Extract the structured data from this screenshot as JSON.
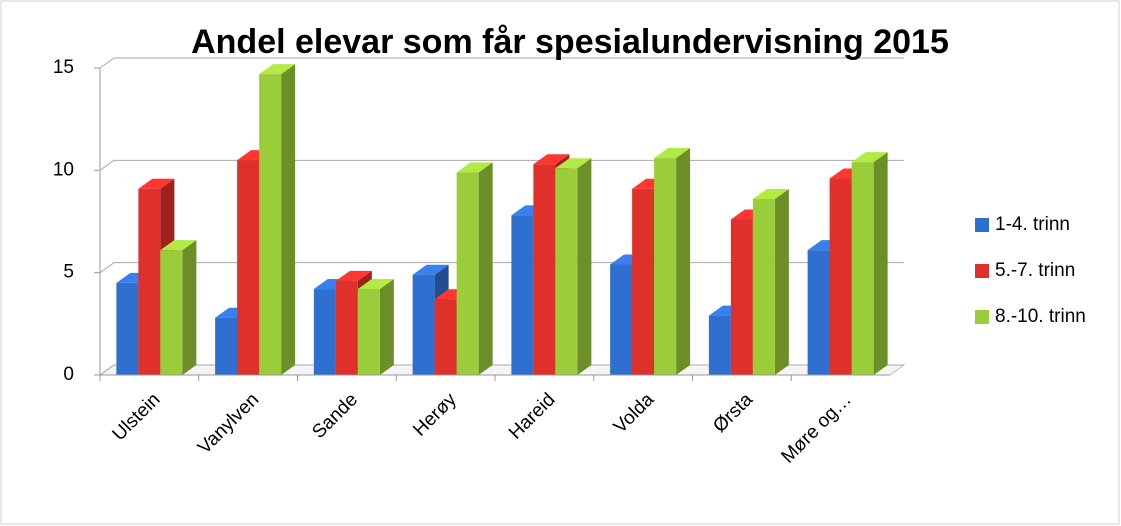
{
  "chart_data": {
    "type": "bar3d",
    "title": "Andel elevar som får spesialundervisning 2015",
    "categories": [
      "Ulstein",
      "Vanylven",
      "Sande",
      "Herøy",
      "Hareid",
      "Volda",
      "Ørsta",
      "Møre og…"
    ],
    "series": [
      {
        "name": "1-4. trinn",
        "color": "#2f6fd0",
        "values": [
          4.5,
          2.8,
          4.2,
          4.9,
          7.8,
          5.4,
          2.9,
          6.1
        ]
      },
      {
        "name": "5.-7. trinn",
        "color": "#e0302a",
        "values": [
          9.1,
          10.5,
          4.6,
          3.7,
          10.3,
          9.1,
          7.6,
          9.6
        ]
      },
      {
        "name": "8.-10. trinn",
        "color": "#9bcc3a",
        "values": [
          6.1,
          14.7,
          4.2,
          9.9,
          10.1,
          10.6,
          8.6,
          10.4
        ]
      }
    ],
    "ylim": [
      0,
      15
    ],
    "yticks": [
      0,
      5,
      10,
      15
    ],
    "grid": true,
    "legend": "right"
  }
}
